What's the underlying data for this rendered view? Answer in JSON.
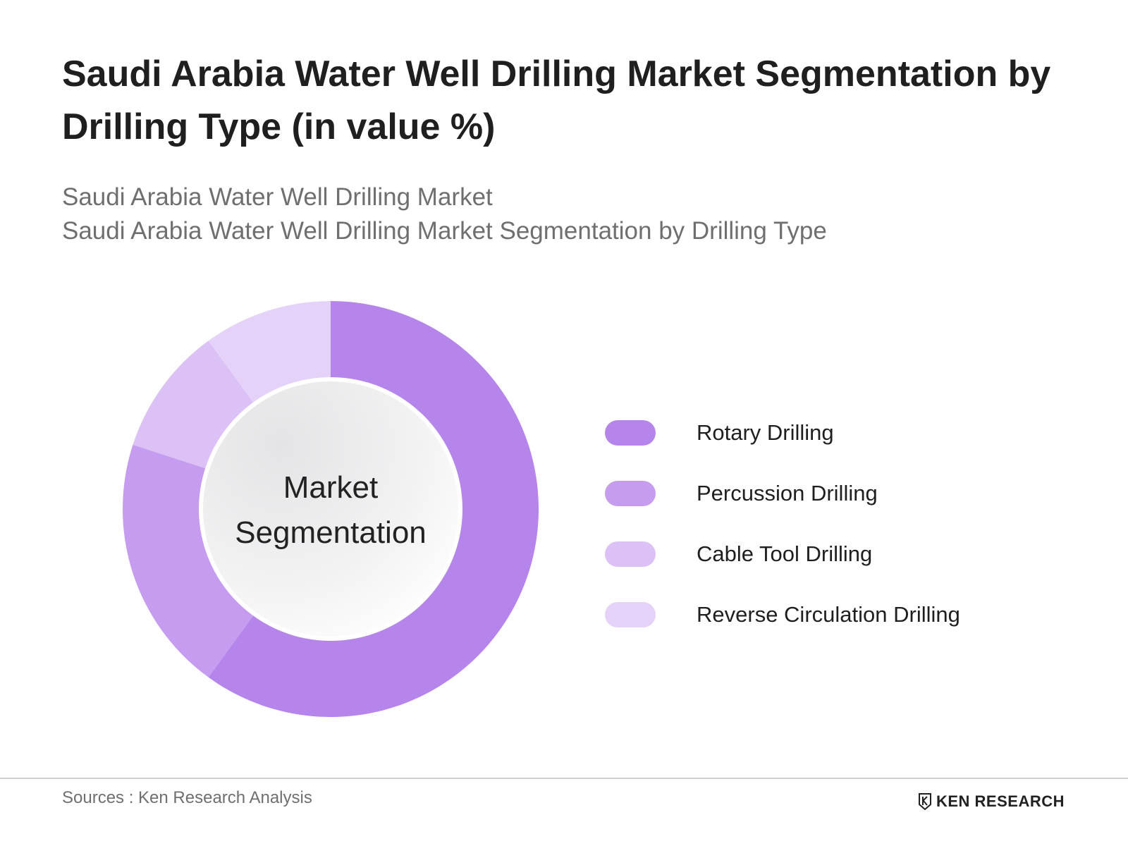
{
  "header": {
    "title": "Saudi Arabia Water Well Drilling Market Segmentation by Drilling Type (in value %)",
    "subtitle_line1": "Saudi Arabia Water Well Drilling Market",
    "subtitle_line2": "Saudi Arabia Water Well Drilling Market Segmentation by Drilling Type"
  },
  "center_label": {
    "line1": "Market",
    "line2": "Segmentation"
  },
  "chart_data": {
    "type": "pie",
    "variant": "donut",
    "title": "Saudi Arabia Water Well Drilling Market Segmentation by Drilling Type (in value %)",
    "categories": [
      "Rotary Drilling",
      "Percussion Drilling",
      "Cable Tool Drilling",
      "Reverse Circulation Drilling"
    ],
    "values": [
      60,
      20,
      10,
      10
    ],
    "colors": [
      "#b585ec",
      "#c59cef",
      "#dbc1f6",
      "#e5d2f8"
    ],
    "legend_position": "right"
  },
  "footer": {
    "source": "Sources : Ken Research Analysis",
    "brand": "KEN RESEARCH"
  }
}
